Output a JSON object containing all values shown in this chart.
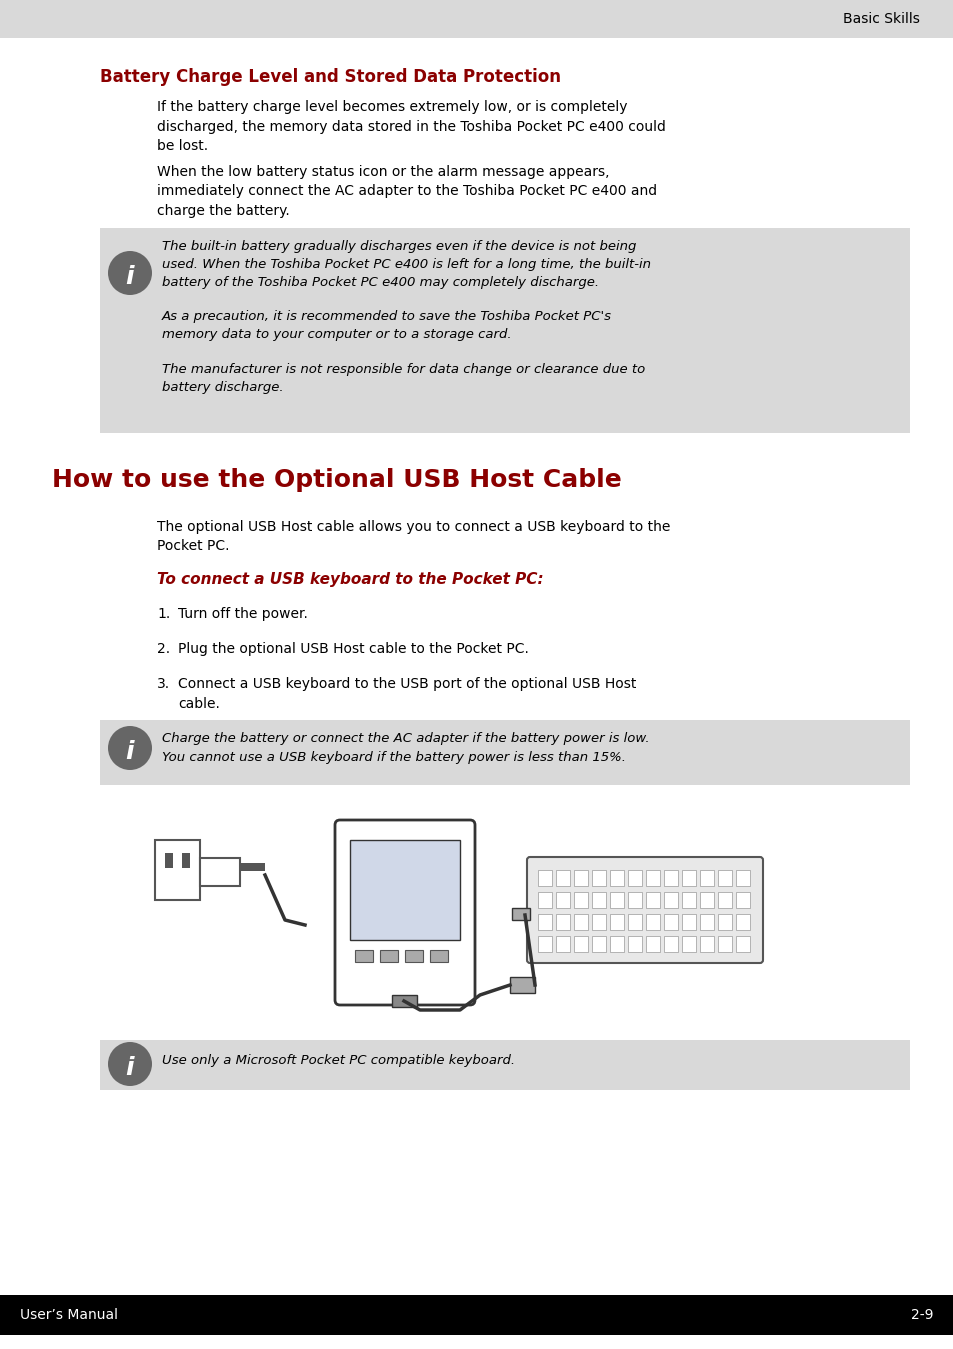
{
  "page_bg": "#ffffff",
  "header_bg": "#d9d9d9",
  "header_text": "Basic Skills",
  "header_text_color": "#000000",
  "footer_bg": "#000000",
  "footer_left": "User’s Manual",
  "footer_right": "2-9",
  "footer_text_color": "#ffffff",
  "section1_title": "Battery Charge Level and Stored Data Protection",
  "section1_title_color": "#8b0000",
  "section1_para1": "If the battery charge level becomes extremely low, or is completely\ndischarged, the memory data stored in the Toshiba Pocket PC e400 could\nbe lost.",
  "section1_para2": "When the low battery status icon or the alarm message appears,\nimmediately connect the AC adapter to the Toshiba Pocket PC e400 and\ncharge the battery.",
  "note_box1_bg": "#d9d9d9",
  "note_box1_lines": [
    "The built-in battery gradually discharges even if the device is not being",
    "used. When the Toshiba Pocket PC e400 is left for a long time, the built-in",
    "battery of the Toshiba Pocket PC e400 may completely discharge.",
    "",
    "As a precaution, it is recommended to save the Toshiba Pocket PC's",
    "memory data to your computer or to a storage card.",
    "",
    "The manufacturer is not responsible for data change or clearance due to",
    "battery discharge."
  ],
  "section2_title": "How to use the Optional USB Host Cable",
  "section2_title_color": "#8b0000",
  "section2_para1": "The optional USB Host cable allows you to connect a USB keyboard to the\nPocket PC.",
  "section2_subtitle": "To connect a USB keyboard to the Pocket PC:",
  "section2_subtitle_color": "#8b0000",
  "steps": [
    "Turn off the power.",
    "Plug the optional USB Host cable to the Pocket PC.",
    "Connect a USB keyboard to the USB port of the optional USB Host\ncable."
  ],
  "note_box2_lines": [
    "Charge the battery or connect the AC adapter if the battery power is low.",
    "You cannot use a USB keyboard if the battery power is less than 15%."
  ],
  "note_box3_lines": [
    "Use only a Microsoft Pocket PC compatible keyboard."
  ]
}
